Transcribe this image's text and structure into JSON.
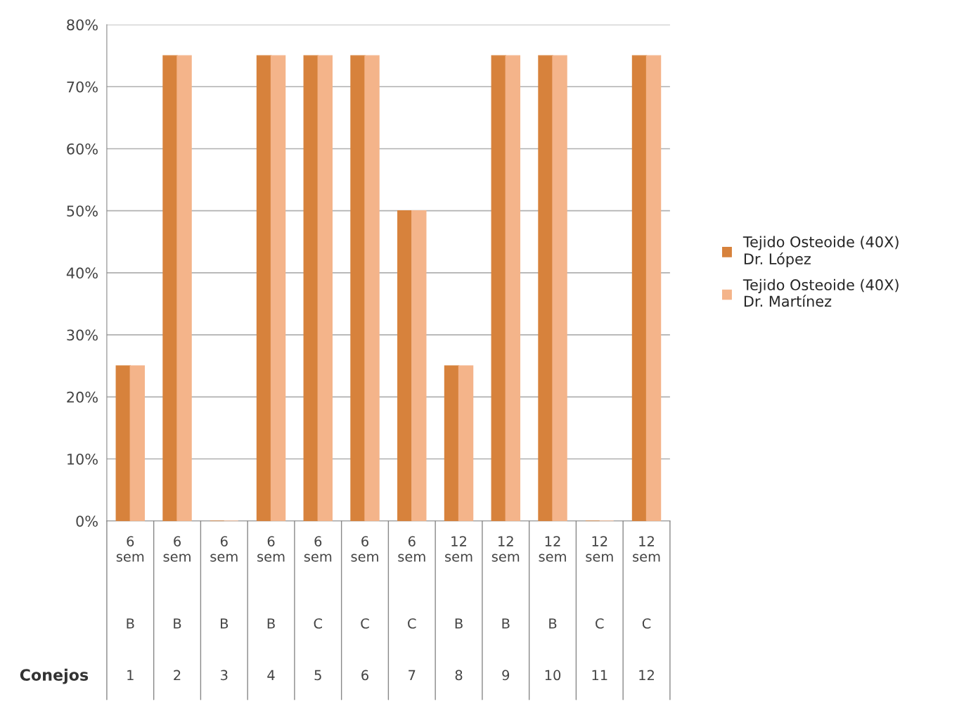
{
  "chart_data": {
    "type": "bar",
    "categories": [
      "6 sem\nB\n1",
      "6 sem\nB\n2",
      "6 sem\nB\n3",
      "6 sem\nB\n4",
      "6 sem\nC\n5",
      "6 sem\nC\n6",
      "6 sem\nC\n7",
      "12 sem\nB\n8",
      "12 sem\nB\n9",
      "12 sem\nB\n10",
      "12 sem\nC\n11",
      "12 sem\nC\n12"
    ],
    "annotations": [
      "Conejos"
    ],
    "series": [
      {
        "name": "Tejido Osteoide (40X)\nDr. López",
        "color": "#d7823c",
        "values": [
          25,
          75,
          0,
          75,
          75,
          75,
          50,
          25,
          75,
          75,
          0,
          75
        ]
      },
      {
        "name": "Tejido Osteoide (40X)\nDr. Martínez",
        "color": "#f4b48a",
        "values": [
          25,
          75,
          0,
          75,
          75,
          75,
          50,
          25,
          75,
          75,
          0,
          75
        ]
      }
    ],
    "ylim": [
      0,
      80
    ],
    "yticks": [
      {
        "value": 0,
        "label": "0%"
      },
      {
        "value": 10,
        "label": "10%"
      },
      {
        "value": 20,
        "label": "20%"
      },
      {
        "value": 30,
        "label": "30%"
      },
      {
        "value": 40,
        "label": "40%"
      },
      {
        "value": 50,
        "label": "50%"
      },
      {
        "value": 60,
        "label": "60%"
      },
      {
        "value": 70,
        "label": "70%"
      },
      {
        "value": 80,
        "label": "80%"
      }
    ],
    "grid": "y",
    "legend": "right"
  }
}
